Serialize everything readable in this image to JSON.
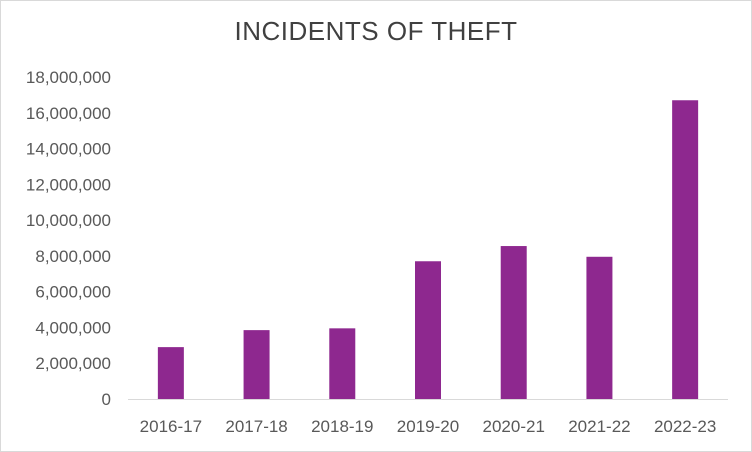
{
  "chart_data": {
    "type": "bar",
    "title": "INCIDENTS OF THEFT",
    "categories": [
      "2016-17",
      "2017-18",
      "2018-19",
      "2019-20",
      "2020-21",
      "2021-22",
      "2022-23"
    ],
    "values": [
      2900000,
      3850000,
      3950000,
      7700000,
      8550000,
      7950000,
      16700000
    ],
    "ylim": [
      0,
      18000000
    ],
    "yticks": [
      0,
      2000000,
      4000000,
      6000000,
      8000000,
      10000000,
      12000000,
      14000000,
      16000000,
      18000000
    ],
    "ytick_labels": [
      "0",
      "2,000,000",
      "4,000,000",
      "6,000,000",
      "8,000,000",
      "10,000,000",
      "12,000,000",
      "14,000,000",
      "16,000,000",
      "18,000,000"
    ],
    "xlabel": "",
    "ylabel": "",
    "grid": false,
    "legend": "none",
    "bar_color": "#8e288f",
    "axis_color": "#d9d9d9"
  }
}
